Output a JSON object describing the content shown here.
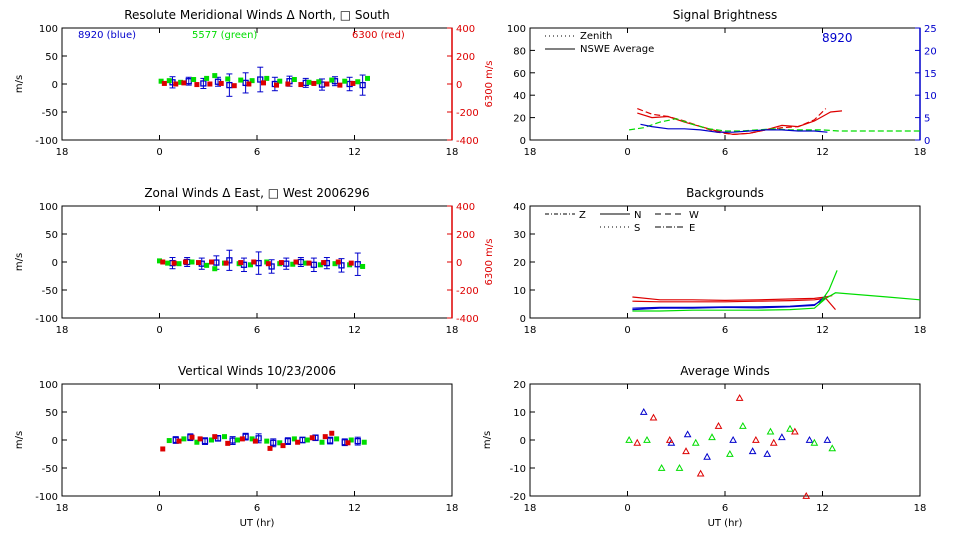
{
  "colors": {
    "blue": "#0000cc",
    "green": "#00dd00",
    "red": "#dd0000",
    "axis": "#000000"
  },
  "chart_data": [
    {
      "id": "meridional",
      "type": "scatter",
      "title": "Resolute Meridional Winds Δ North, □ South",
      "ylabel": "m/s",
      "xlabel": "",
      "xlim": [
        -6,
        18
      ],
      "ylim": [
        -100,
        100
      ],
      "xticks": [
        "18",
        "0",
        "6",
        "12",
        "18"
      ],
      "yticks": [
        "100",
        "50",
        "0",
        "-50",
        "-100"
      ],
      "y2label": "6300 m/s",
      "y2ticks": [
        "400",
        "200",
        "0",
        "-200",
        "-400"
      ],
      "annotations": [
        "8920 (blue)",
        "5577 (green)",
        "6300 (red)"
      ],
      "series": [
        {
          "color": "blue",
          "x": [
            0.8,
            1.8,
            2.7,
            3.6,
            4.3,
            5.3,
            6.2,
            7.1,
            8.0,
            9.0,
            10.0,
            10.8,
            11.7,
            12.5
          ],
          "y": [
            3,
            5,
            1,
            4,
            -2,
            2,
            8,
            0,
            5,
            2,
            -1,
            5,
            0,
            -2
          ],
          "err": [
            10,
            7,
            9,
            8,
            20,
            18,
            22,
            12,
            9,
            8,
            10,
            8,
            12,
            18
          ]
        },
        {
          "color": "green",
          "x": [
            0.1,
            0.6,
            1.3,
            2.1,
            2.9,
            3.4,
            4.2,
            5.0,
            5.7,
            6.6,
            7.4,
            8.3,
            9.2,
            9.8,
            10.6,
            11.4,
            12.2,
            12.8
          ],
          "y": [
            5,
            6,
            3,
            8,
            10,
            15,
            9,
            7,
            6,
            10,
            5,
            8,
            3,
            4,
            7,
            5,
            4,
            10
          ]
        },
        {
          "color": "red",
          "x": [
            0.3,
            1.0,
            1.5,
            2.3,
            3.1,
            3.8,
            4.6,
            5.5,
            6.4,
            7.2,
            7.9,
            8.7,
            9.5,
            10.3,
            11.1,
            11.9
          ],
          "y": [
            1,
            0,
            2,
            -1,
            0,
            1,
            -3,
            0,
            2,
            -2,
            0,
            -1,
            1,
            0,
            -2,
            1
          ]
        }
      ]
    },
    {
      "id": "zonal",
      "type": "scatter",
      "title": "Zonal Winds Δ East, □ West 2006296",
      "ylabel": "m/s",
      "xlabel": "",
      "xlim": [
        -6,
        18
      ],
      "ylim": [
        -100,
        100
      ],
      "xticks": [
        "18",
        "0",
        "6",
        "12",
        "18"
      ],
      "yticks": [
        "100",
        "50",
        "0",
        "-50",
        "-100"
      ],
      "y2label": "6300 m/s",
      "y2ticks": [
        "400",
        "200",
        "0",
        "-200",
        "-400"
      ],
      "annotations": [],
      "series": [
        {
          "color": "blue",
          "x": [
            0.8,
            1.7,
            2.6,
            3.5,
            4.3,
            5.2,
            6.1,
            6.9,
            7.8,
            8.7,
            9.5,
            10.3,
            11.2,
            12.2
          ],
          "y": [
            -2,
            0,
            -3,
            -1,
            3,
            -5,
            -2,
            -8,
            -3,
            0,
            -5,
            -2,
            -6,
            -4
          ],
          "err": [
            10,
            8,
            10,
            12,
            18,
            12,
            20,
            12,
            10,
            8,
            12,
            10,
            12,
            20
          ]
        },
        {
          "color": "green",
          "x": [
            0.0,
            0.5,
            1.2,
            2.0,
            2.9,
            3.4,
            4.0,
            4.9,
            5.6,
            6.6,
            7.4,
            8.2,
            9.0,
            9.9,
            10.8,
            11.7,
            12.5
          ],
          "y": [
            2,
            -2,
            -3,
            0,
            -6,
            -12,
            -2,
            -3,
            -5,
            0,
            -3,
            -4,
            -2,
            -5,
            -3,
            -5,
            -8
          ]
        },
        {
          "color": "red",
          "x": [
            0.2,
            0.9,
            1.6,
            2.4,
            3.2,
            4.1,
            5.0,
            5.8,
            6.7,
            7.5,
            8.4,
            9.2,
            10.1,
            11.0,
            11.8
          ],
          "y": [
            0,
            -2,
            0,
            -1,
            0,
            -2,
            -1,
            0,
            -3,
            -1,
            0,
            -2,
            -1,
            0,
            -2
          ]
        }
      ]
    },
    {
      "id": "vertical",
      "type": "scatter",
      "title": "Vertical Winds 10/23/2006",
      "ylabel": "m/s",
      "xlabel": "UT (hr)",
      "xlim": [
        -6,
        18
      ],
      "ylim": [
        -100,
        100
      ],
      "xticks": [
        "18",
        "0",
        "6",
        "12",
        "18"
      ],
      "yticks": [
        "100",
        "50",
        "0",
        "-50",
        "-100"
      ],
      "annotations": [],
      "series": [
        {
          "color": "blue",
          "x": [
            1.0,
            1.9,
            2.8,
            3.6,
            4.5,
            5.3,
            6.1,
            7.0,
            7.9,
            8.8,
            9.6,
            10.5,
            11.4,
            12.2
          ],
          "y": [
            0,
            5,
            -2,
            3,
            -1,
            6,
            3,
            -5,
            -2,
            0,
            4,
            -1,
            -4,
            -2
          ],
          "err": [
            6,
            6,
            6,
            5,
            7,
            6,
            8,
            7,
            6,
            5,
            5,
            6,
            6,
            7
          ]
        },
        {
          "color": "green",
          "x": [
            0.6,
            1.5,
            2.3,
            3.2,
            4.0,
            4.8,
            5.7,
            6.6,
            7.4,
            8.3,
            9.1,
            10.0,
            10.9,
            11.8,
            12.6
          ],
          "y": [
            -1,
            2,
            -4,
            0,
            6,
            0,
            2,
            -2,
            -5,
            2,
            0,
            -4,
            2,
            0,
            -4
          ]
        },
        {
          "color": "red",
          "x": [
            0.2,
            1.2,
            2.0,
            2.5,
            3.4,
            4.2,
            5.1,
            5.9,
            6.8,
            7.6,
            8.5,
            9.4,
            10.2,
            10.6,
            11.6
          ],
          "y": [
            -16,
            -2,
            5,
            2,
            6,
            -6,
            2,
            -2,
            -15,
            -10,
            -4,
            4,
            6,
            12,
            -5
          ]
        }
      ]
    },
    {
      "id": "brightness",
      "type": "line",
      "title": "Signal Brightness",
      "ylabel": "",
      "xlabel": "",
      "xlim": [
        -6,
        18
      ],
      "ylim": [
        0,
        100
      ],
      "y2lim": [
        0,
        25
      ],
      "xticks": [
        "18",
        "0",
        "6",
        "12",
        "18"
      ],
      "yticks": [
        "100",
        "80",
        "60",
        "40",
        "20",
        "0"
      ],
      "y2ticks": [
        "25",
        "20",
        "15",
        "10",
        "5",
        "0"
      ],
      "legend": [
        "Zenith",
        "NSWE Average"
      ],
      "annotations": [
        "8920"
      ],
      "series": [
        {
          "name": "Zenith",
          "color": "red",
          "dash": "6,3",
          "x": [
            0.6,
            1.5,
            2.5,
            3.5,
            4.5,
            5.5,
            6.5,
            7.5,
            8.5,
            9.5,
            10.5,
            11.5,
            12.2
          ],
          "y": [
            28,
            23,
            21,
            17,
            12,
            7,
            5,
            6,
            9,
            11,
            12,
            18,
            28
          ]
        },
        {
          "name": "NSWE Average",
          "color": "red",
          "x": [
            0.6,
            1.5,
            2.5,
            3.5,
            4.5,
            5.5,
            6.5,
            7.5,
            8.5,
            9.5,
            10.5,
            11.5,
            12.5,
            13.2
          ],
          "y": [
            24,
            20,
            21,
            16,
            12,
            8,
            5,
            6,
            9,
            13,
            12,
            17,
            25,
            26
          ]
        },
        {
          "name": "Zenith",
          "color": "green",
          "dash": "6,3",
          "x": [
            0.1,
            1.0,
            2.0,
            3.0,
            4.0,
            5.0,
            6.0,
            7.0,
            8.0,
            9.0,
            10.0,
            11.0,
            12.0,
            13.0,
            14.0,
            16.0,
            18.0
          ],
          "y": [
            9,
            11,
            16,
            19,
            14,
            10,
            8,
            8,
            9,
            10,
            9,
            9,
            9,
            8,
            8,
            8,
            8
          ]
        },
        {
          "name": "NSWE Average",
          "color": "blue",
          "x": [
            0.8,
            1.5,
            2.5,
            3.5,
            4.5,
            5.5,
            6.5,
            7.5,
            8.5,
            9.5,
            10.5,
            11.5,
            12.3
          ],
          "y": [
            14,
            12,
            10,
            10,
            9,
            7,
            7,
            8,
            9,
            9,
            8,
            8,
            7
          ]
        }
      ]
    },
    {
      "id": "backgrounds",
      "type": "line",
      "title": "Backgrounds",
      "ylabel": "",
      "xlabel": "",
      "xlim": [
        -6,
        18
      ],
      "ylim": [
        0,
        40
      ],
      "xticks": [
        "18",
        "0",
        "6",
        "12",
        "18"
      ],
      "yticks": [
        "40",
        "30",
        "20",
        "10",
        "0"
      ],
      "legend": [
        "Z",
        "N",
        "W",
        "S",
        "E"
      ],
      "annotations": [],
      "series": [
        {
          "name": "Z",
          "color": "red",
          "x": [
            0.3,
            2,
            4,
            6,
            8,
            10,
            11.5,
            12.2,
            12.6
          ],
          "y": [
            7.5,
            6.5,
            6.5,
            6.3,
            6.5,
            6.8,
            7,
            7.5,
            8
          ]
        },
        {
          "name": "N",
          "color": "red",
          "x": [
            0.3,
            2,
            4,
            6,
            8,
            10,
            11.5,
            12.2,
            12.8
          ],
          "y": [
            6,
            5.8,
            5.8,
            5.8,
            6,
            6.2,
            6.5,
            7,
            3
          ]
        },
        {
          "name": "W",
          "color": "blue",
          "x": [
            0.3,
            2,
            4,
            6,
            8,
            10,
            11.5,
            12.2
          ],
          "y": [
            3,
            3.5,
            3.5,
            3.8,
            3.6,
            4,
            4.5,
            8
          ]
        },
        {
          "name": "S",
          "color": "blue",
          "x": [
            0.3,
            2,
            4,
            6,
            8,
            10,
            11.5,
            12.2
          ],
          "y": [
            3.5,
            3.8,
            3.8,
            4,
            4,
            4.2,
            4.8,
            7
          ]
        },
        {
          "name": "E",
          "color": "green",
          "x": [
            0.3,
            2,
            4,
            6,
            8,
            10,
            11.5,
            12.2,
            12.8,
            16,
            18
          ],
          "y": [
            2.5,
            2.5,
            2.8,
            2.8,
            2.8,
            3,
            3.5,
            7,
            9,
            7.5,
            6.5
          ]
        },
        {
          "name": "N",
          "color": "green",
          "x": [
            11.8,
            12.4,
            12.9
          ],
          "y": [
            5,
            10,
            17
          ]
        }
      ]
    },
    {
      "id": "average",
      "type": "scatter",
      "title": "Average Winds",
      "ylabel": "m/s",
      "xlabel": "UT (hr)",
      "xlim": [
        -6,
        18
      ],
      "ylim": [
        -20,
        20
      ],
      "xticks": [
        "18",
        "0",
        "6",
        "12",
        "18"
      ],
      "yticks": [
        "20",
        "10",
        "0",
        "-10",
        "-20"
      ],
      "annotations": [],
      "series": [
        {
          "color": "blue",
          "x": [
            1.0,
            2.7,
            3.7,
            4.9,
            6.5,
            7.7,
            8.6,
            9.5,
            11.2,
            12.3
          ],
          "y": [
            10,
            -1,
            2,
            -6,
            0,
            -4,
            -5,
            1,
            0,
            0
          ]
        },
        {
          "color": "green",
          "x": [
            0.1,
            1.2,
            2.1,
            3.2,
            4.2,
            5.2,
            6.3,
            7.1,
            8.8,
            10.0,
            11.5,
            12.6
          ],
          "y": [
            0,
            0,
            -10,
            -10,
            -1,
            1,
            -5,
            5,
            3,
            4,
            -1,
            -3
          ]
        },
        {
          "color": "red",
          "x": [
            0.6,
            1.6,
            2.6,
            3.6,
            4.5,
            5.6,
            6.9,
            7.9,
            9.0,
            10.3,
            11.0
          ],
          "y": [
            -1,
            8,
            0,
            -4,
            -12,
            5,
            15,
            0,
            -1,
            3,
            -20
          ]
        }
      ]
    }
  ]
}
